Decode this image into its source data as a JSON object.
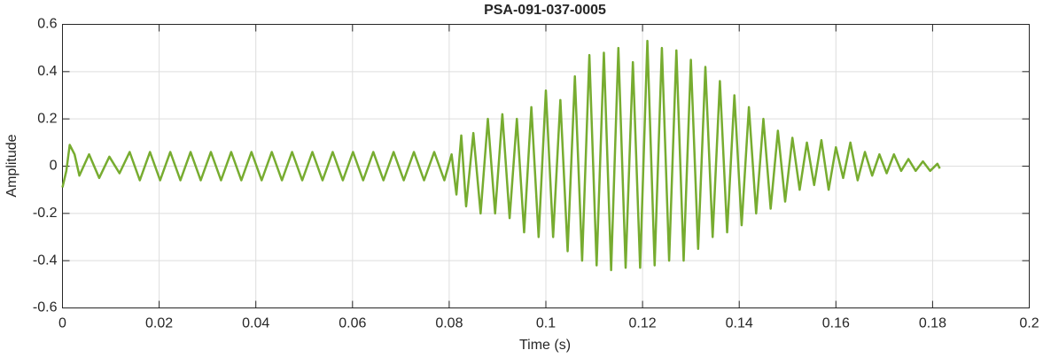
{
  "chart_data": {
    "type": "line",
    "title": "PSA-091-037-0005",
    "xlabel": "Time (s)",
    "ylabel": "Amplitude",
    "color": "#77ac30",
    "grid": true,
    "xlim": [
      0,
      0.2
    ],
    "xticks": [
      0,
      0.02,
      0.04,
      0.06,
      0.08,
      0.1,
      0.12,
      0.14,
      0.16,
      0.18,
      0.2
    ],
    "ylim": [
      -0.6,
      0.6
    ],
    "yticks": [
      -0.6,
      -0.4,
      -0.2,
      0,
      0.2,
      0.4,
      0.6
    ],
    "x": [
      0,
      0.0008,
      0.0015,
      0.0025,
      0.0035,
      0.0055,
      0.0076,
      0.0097,
      0.0118,
      0.0139,
      0.016,
      0.0181,
      0.0202,
      0.0223,
      0.0244,
      0.0265,
      0.0286,
      0.0307,
      0.0328,
      0.0349,
      0.037,
      0.0391,
      0.0412,
      0.0433,
      0.0454,
      0.0475,
      0.0496,
      0.0517,
      0.0538,
      0.0559,
      0.058,
      0.0601,
      0.0622,
      0.0643,
      0.0664,
      0.0685,
      0.0706,
      0.0727,
      0.0748,
      0.0769,
      0.079,
      0.0805,
      0.0815,
      0.0825,
      0.0835,
      0.085,
      0.0865,
      0.088,
      0.0895,
      0.091,
      0.0925,
      0.094,
      0.0955,
      0.097,
      0.0985,
      0.1,
      0.1015,
      0.103,
      0.1045,
      0.106,
      0.1075,
      0.109,
      0.1105,
      0.112,
      0.1135,
      0.115,
      0.1165,
      0.118,
      0.1195,
      0.121,
      0.1225,
      0.124,
      0.1255,
      0.127,
      0.1285,
      0.13,
      0.1315,
      0.133,
      0.1345,
      0.136,
      0.1375,
      0.139,
      0.1405,
      0.142,
      0.1435,
      0.145,
      0.1465,
      0.148,
      0.1495,
      0.151,
      0.1525,
      0.154,
      0.1555,
      0.157,
      0.1585,
      0.16,
      0.1615,
      0.163,
      0.1645,
      0.166,
      0.1675,
      0.169,
      0.1705,
      0.172,
      0.1735,
      0.175,
      0.1765,
      0.178,
      0.1795,
      0.181,
      0.1815
    ],
    "values": [
      -0.09,
      -0.02,
      0.09,
      0.05,
      -0.04,
      0.05,
      -0.05,
      0.04,
      -0.03,
      0.06,
      -0.06,
      0.06,
      -0.06,
      0.06,
      -0.06,
      0.06,
      -0.06,
      0.06,
      -0.06,
      0.06,
      -0.06,
      0.06,
      -0.06,
      0.06,
      -0.06,
      0.06,
      -0.06,
      0.06,
      -0.06,
      0.06,
      -0.06,
      0.06,
      -0.06,
      0.06,
      -0.06,
      0.06,
      -0.06,
      0.06,
      -0.06,
      0.06,
      -0.06,
      0.05,
      -0.12,
      0.13,
      -0.17,
      0.14,
      -0.2,
      0.2,
      -0.2,
      0.22,
      -0.22,
      0.2,
      -0.28,
      0.25,
      -0.3,
      0.32,
      -0.3,
      0.28,
      -0.36,
      0.38,
      -0.4,
      0.47,
      -0.42,
      0.48,
      -0.44,
      0.5,
      -0.43,
      0.44,
      -0.43,
      0.53,
      -0.42,
      0.5,
      -0.4,
      0.49,
      -0.4,
      0.45,
      -0.35,
      0.42,
      -0.3,
      0.36,
      -0.28,
      0.3,
      -0.25,
      0.25,
      -0.2,
      0.2,
      -0.18,
      0.15,
      -0.15,
      0.12,
      -0.1,
      0.1,
      -0.08,
      0.11,
      -0.1,
      0.08,
      -0.05,
      0.1,
      -0.06,
      0.06,
      -0.04,
      0.05,
      -0.03,
      0.05,
      -0.02,
      0.03,
      -0.02,
      0.02,
      -0.02,
      0.01,
      -0.01
    ]
  }
}
